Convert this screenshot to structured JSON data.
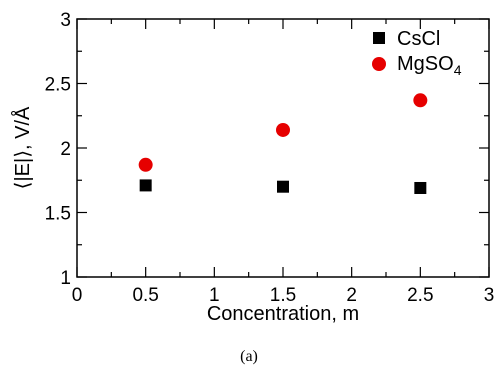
{
  "chart_data": {
    "type": "scatter",
    "xlabel": "Concentration, m",
    "ylabel": "⟨|E|⟩, V/Å",
    "xlim": [
      0,
      3
    ],
    "ylim": [
      1,
      3
    ],
    "x_ticks": [
      "0",
      "0.5",
      "1",
      "1.5",
      "2",
      "2.5",
      "3"
    ],
    "y_ticks": [
      "1",
      "1.5",
      "2",
      "2.5",
      "3"
    ],
    "grid": false,
    "legend_position": "top-right",
    "series": [
      {
        "name": "CsCl",
        "marker": "square",
        "color": "#000000",
        "x": [
          0.5,
          1.5,
          2.5
        ],
        "y": [
          1.71,
          1.7,
          1.69
        ]
      },
      {
        "name": "MgSO4",
        "name_base": "MgSO",
        "name_sub": "4",
        "marker": "circle",
        "color": "#e60000",
        "x": [
          0.5,
          1.5,
          2.5
        ],
        "y": [
          1.87,
          2.14,
          2.37
        ]
      }
    ]
  },
  "caption": "(a)"
}
